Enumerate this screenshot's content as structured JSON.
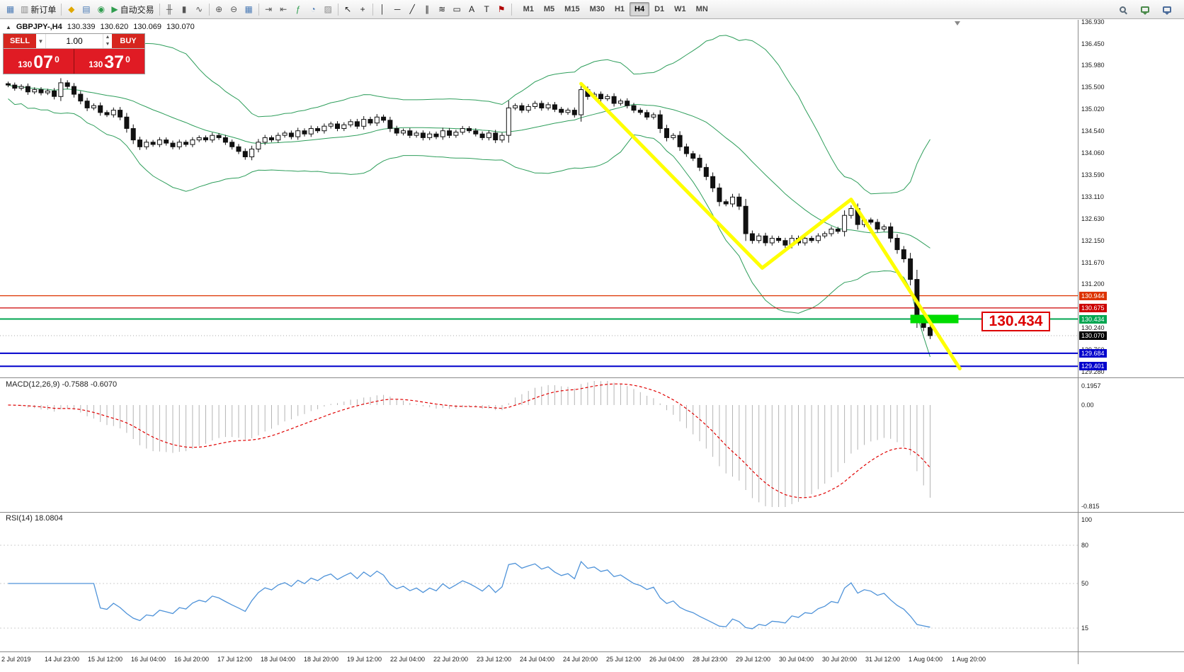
{
  "toolbar": {
    "items": [
      {
        "type": "btn",
        "name": "app-menu-button",
        "icon": "chart-window-icon",
        "glyph": "▦",
        "color": "#4a7ab5"
      },
      {
        "type": "btn",
        "name": "new-order-button",
        "icon": "new-order-icon",
        "glyph": "▥",
        "color": "#888888",
        "label": "新订单"
      },
      {
        "type": "sep"
      },
      {
        "type": "btn",
        "name": "market-watch-button",
        "icon": "market-watch-icon",
        "glyph": "◆",
        "color": "#e0a800"
      },
      {
        "type": "btn",
        "name": "data-window-button",
        "icon": "data-window-icon",
        "glyph": "▤",
        "color": "#4a7ab5"
      },
      {
        "type": "btn",
        "name": "navigator-button",
        "icon": "navigator-icon",
        "glyph": "◉",
        "color": "#2f9d4e"
      },
      {
        "type": "btn",
        "name": "autotrade-button",
        "icon": "autotrade-play-icon",
        "glyph": "▶",
        "color": "#2f9d4e",
        "label": "自动交易"
      },
      {
        "type": "sep"
      },
      {
        "type": "btn",
        "name": "bar-chart-button",
        "icon": "bar-chart-icon",
        "glyph": "╫",
        "color": "#555555"
      },
      {
        "type": "btn",
        "name": "candle-chart-button",
        "icon": "candlestick-icon",
        "glyph": "▮",
        "color": "#555555"
      },
      {
        "type": "btn",
        "name": "line-chart-button",
        "icon": "line-chart-icon",
        "glyph": "∿",
        "color": "#555555"
      },
      {
        "type": "sep"
      },
      {
        "type": "btn",
        "name": "zoom-in-button",
        "icon": "zoom-in-icon",
        "glyph": "⊕",
        "color": "#555555"
      },
      {
        "type": "btn",
        "name": "zoom-out-button",
        "icon": "zoom-out-icon",
        "glyph": "⊖",
        "color": "#555555"
      },
      {
        "type": "btn",
        "name": "tile-windows-button",
        "icon": "tile-windows-icon",
        "glyph": "▦",
        "color": "#4a7ab5"
      },
      {
        "type": "sep"
      },
      {
        "type": "btn",
        "name": "auto-scroll-button",
        "icon": "auto-scroll-icon",
        "glyph": "⇥",
        "color": "#555555"
      },
      {
        "type": "btn",
        "name": "chart-shift-button",
        "icon": "chart-shift-icon",
        "glyph": "⇤",
        "color": "#555555"
      },
      {
        "type": "btn",
        "name": "indicators-button",
        "icon": "indicators-icon",
        "glyph": "ƒ",
        "color": "#2f9d4e"
      },
      {
        "type": "btn",
        "name": "periods-button",
        "icon": "clock-icon",
        "glyph": "◔",
        "color": "#4a7ab5"
      },
      {
        "type": "btn",
        "name": "templates-button",
        "icon": "template-icon",
        "glyph": "▨",
        "color": "#888888"
      },
      {
        "type": "sep"
      },
      {
        "type": "btn",
        "name": "cursor-button",
        "icon": "cursor-icon",
        "glyph": "↖",
        "color": "#222222"
      },
      {
        "type": "btn",
        "name": "crosshair-button",
        "icon": "crosshair-icon",
        "glyph": "+",
        "color": "#222222"
      },
      {
        "type": "sep"
      },
      {
        "type": "btn",
        "name": "vertical-line-button",
        "icon": "vertical-line-icon",
        "glyph": "│",
        "color": "#222222"
      },
      {
        "type": "btn",
        "name": "horizontal-line-button",
        "icon": "horizontal-line-icon",
        "glyph": "─",
        "color": "#222222"
      },
      {
        "type": "btn",
        "name": "trendline-button",
        "icon": "trendline-icon",
        "glyph": "╱",
        "color": "#222222"
      },
      {
        "type": "btn",
        "name": "channel-button",
        "icon": "channel-icon",
        "glyph": "∥",
        "color": "#222222"
      },
      {
        "type": "btn",
        "name": "fibonacci-button",
        "icon": "fibonacci-icon",
        "glyph": "≋",
        "color": "#222222"
      },
      {
        "type": "btn",
        "name": "shapes-button",
        "icon": "shapes-icon",
        "glyph": "▭",
        "color": "#222222"
      },
      {
        "type": "btn",
        "name": "text-button",
        "icon": "text-icon",
        "glyph": "A",
        "color": "#222222"
      },
      {
        "type": "btn",
        "name": "label-button",
        "icon": "text-label-icon",
        "glyph": "T",
        "color": "#222222"
      },
      {
        "type": "btn",
        "name": "arrow-objects-button",
        "icon": "arrow-flag-icon",
        "glyph": "⚑",
        "color": "#b00000"
      },
      {
        "type": "sep"
      }
    ],
    "timeframes": [
      "M1",
      "M5",
      "M15",
      "M30",
      "H1",
      "H4",
      "D1",
      "W1",
      "MN"
    ],
    "active_timeframe": "H4",
    "right_icons": [
      {
        "name": "search-button",
        "icon": "search-icon",
        "kind": "search"
      },
      {
        "name": "chat-button",
        "icon": "chat-icon",
        "kind": "chat"
      },
      {
        "name": "community-button",
        "icon": "chat-bubble-icon",
        "kind": "chat-blue"
      }
    ]
  },
  "ohlc": {
    "symbol_period": "GBPJPY-,H4",
    "open": "130.339",
    "high": "130.620",
    "low": "130.069",
    "close": "130.070"
  },
  "trade_panel": {
    "sell_label": "SELL",
    "buy_label": "BUY",
    "volume": "1.00",
    "sell_price_prefix": "130",
    "sell_price_main": "07",
    "sell_price_sup": "0",
    "buy_price_prefix": "130",
    "buy_price_main": "37",
    "buy_price_sup": "0"
  },
  "annotation": {
    "price_text": "130.434"
  },
  "chart_data": {
    "type": "candlestick",
    "symbol": "GBPJPY-",
    "timeframe": "H4",
    "ohlc_current": {
      "open": 130.339,
      "high": 130.62,
      "low": 130.069,
      "close": 130.07
    },
    "candles": {
      "closes": [
        135.55,
        135.48,
        135.52,
        135.4,
        135.45,
        135.38,
        135.42,
        135.3,
        135.6,
        135.52,
        135.35,
        135.2,
        135.05,
        135.1,
        134.95,
        134.9,
        135.0,
        134.85,
        134.6,
        134.35,
        134.2,
        134.3,
        134.25,
        134.35,
        134.28,
        134.2,
        134.3,
        134.25,
        134.35,
        134.4,
        134.35,
        134.45,
        134.4,
        134.3,
        134.2,
        134.1,
        133.98,
        134.15,
        134.3,
        134.4,
        134.35,
        134.45,
        134.5,
        134.42,
        134.55,
        134.48,
        134.6,
        134.55,
        134.65,
        134.7,
        134.6,
        134.68,
        134.75,
        134.65,
        134.8,
        134.72,
        134.85,
        134.78,
        134.6,
        134.5,
        134.55,
        134.45,
        134.5,
        134.4,
        134.48,
        134.42,
        134.55,
        134.45,
        134.52,
        134.6,
        134.55,
        134.48,
        134.4,
        134.5,
        134.35,
        134.45,
        135.05,
        135.1,
        135.0,
        135.08,
        135.15,
        135.05,
        135.12,
        135.02,
        134.95,
        135.0,
        134.9,
        135.45,
        135.3,
        135.35,
        135.25,
        135.3,
        135.15,
        135.2,
        135.1,
        135.0,
        134.95,
        134.85,
        134.9,
        134.6,
        134.4,
        134.45,
        134.2,
        134.05,
        133.95,
        133.75,
        133.55,
        133.3,
        133.0,
        132.95,
        133.1,
        132.9,
        132.3,
        132.15,
        132.25,
        132.1,
        132.2,
        132.15,
        132.05,
        132.2,
        132.1,
        132.2,
        132.15,
        132.25,
        132.3,
        132.4,
        132.35,
        132.7,
        132.85,
        132.5,
        132.6,
        132.55,
        132.4,
        132.45,
        132.2,
        131.95,
        131.75,
        131.3,
        130.45,
        130.25,
        130.07
      ]
    },
    "styles": {
      "bull_color": "#ffffff",
      "bear_color": "#111111",
      "wick_color": "#111111",
      "bollinger_color": "#2e9e5b",
      "trend_color": "#ffff00",
      "highlight_color": "#00dc00"
    },
    "indicators": {
      "bollinger": {
        "period": 20,
        "deviation": 2
      },
      "macd": {
        "label": "MACD(12,26,9) -0.7588 -0.6070",
        "params": [
          12,
          26,
          9
        ],
        "macd_value": -0.7588,
        "signal_value": -0.607,
        "scale": [
          "0.1957",
          "0.00",
          "-0.815"
        ],
        "histogram_color": "#b4b4b4",
        "signal_color": "#e00000"
      },
      "rsi": {
        "label": "RSI(14) 18.0804",
        "period": 14,
        "value": 18.0804,
        "scale": [
          100,
          80,
          50,
          15
        ],
        "levels": [
          80,
          50,
          15
        ],
        "color": "#4f93d9"
      }
    },
    "levels": [
      {
        "price": 130.944,
        "color": "#dd3300",
        "width": 1.3
      },
      {
        "price": 130.675,
        "color": "#cc0000",
        "width": 1.3
      },
      {
        "price": 130.434,
        "color": "#00a651",
        "width": 2
      },
      {
        "price": 129.684,
        "color": "#0000cc",
        "width": 2
      },
      {
        "price": 129.401,
        "color": "#0000cc",
        "width": 2
      }
    ],
    "current_price_line": {
      "price": 130.07,
      "color": "#aaaaaa"
    },
    "highlight_rect": {
      "from_index": 137,
      "to_index": 144.3,
      "price": 130.434
    },
    "trend_line": {
      "points": [
        [
          87,
          135.58
        ],
        [
          114.5,
          131.55
        ],
        [
          128,
          133.05
        ],
        [
          144.5,
          129.35
        ]
      ]
    },
    "price_axis": {
      "labels": [
        "136.930",
        "136.450",
        "135.980",
        "135.500",
        "135.020",
        "134.540",
        "134.060",
        "133.590",
        "133.110",
        "132.630",
        "132.150",
        "131.670",
        "131.200",
        "130.240",
        "129.760",
        "129.280"
      ],
      "badges": [
        {
          "value": "130.944",
          "color": "#dd3300"
        },
        {
          "value": "130.675",
          "color": "#cc0000"
        },
        {
          "value": "130.434",
          "color": "#00a651"
        },
        {
          "value": "130.070",
          "color": "#000000"
        },
        {
          "value": "129.684",
          "color": "#0000cc"
        },
        {
          "value": "129.401",
          "color": "#0000cc"
        }
      ]
    },
    "time_axis": {
      "labels": [
        "2 Jul 2019",
        "14 Jul 23:00",
        "15 Jul 12:00",
        "16 Jul 04:00",
        "16 Jul 20:00",
        "17 Jul 12:00",
        "18 Jul 04:00",
        "18 Jul 20:00",
        "19 Jul 12:00",
        "22 Jul 04:00",
        "22 Jul 20:00",
        "23 Jul 12:00",
        "24 Jul 04:00",
        "24 Jul 20:00",
        "25 Jul 12:00",
        "26 Jul 04:00",
        "28 Jul 23:00",
        "29 Jul 12:00",
        "30 Jul 04:00",
        "30 Jul 20:00",
        "31 Jul 12:00",
        "1 Aug 04:00",
        "1 Aug 20:00"
      ]
    }
  }
}
